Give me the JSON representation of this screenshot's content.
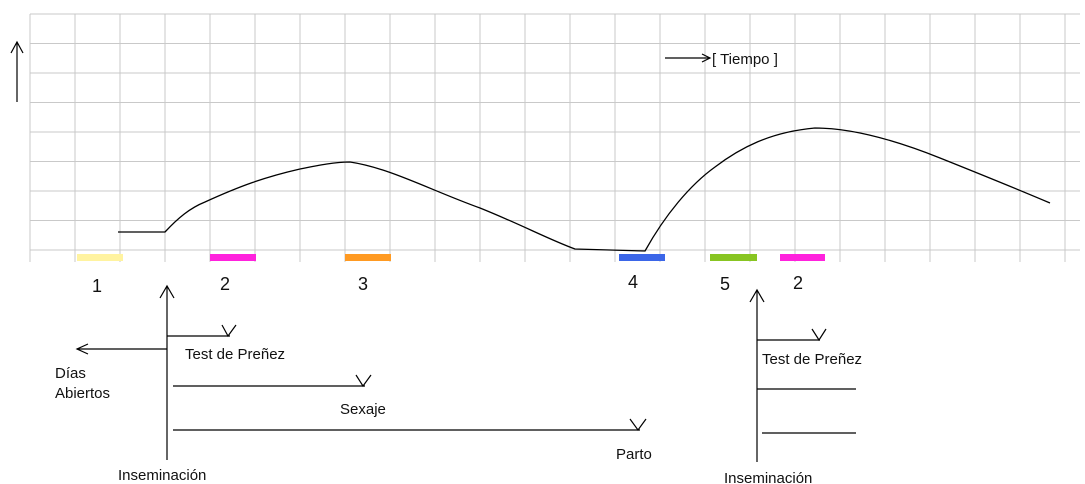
{
  "diagram": {
    "time_label": "[ Tiempo ]",
    "markers": [
      {
        "label": "1",
        "color": "#fff3a0"
      },
      {
        "label": "2",
        "color": "#ff22dd"
      },
      {
        "label": "3",
        "color": "#ff9a22"
      },
      {
        "label": "4",
        "color": "#3b66e8"
      },
      {
        "label": "5",
        "color": "#88c522"
      },
      {
        "label": "2",
        "color": "#ff22dd"
      }
    ],
    "left_group": {
      "insemination": "Inseminación",
      "open_days": "Días",
      "open_days_2": "Abiertos",
      "pregnancy_test": "Test de Preñez",
      "sexing": "Sexaje",
      "calving": "Parto"
    },
    "right_group": {
      "insemination": "Inseminación",
      "pregnancy_test": "Test de Preñez"
    }
  }
}
